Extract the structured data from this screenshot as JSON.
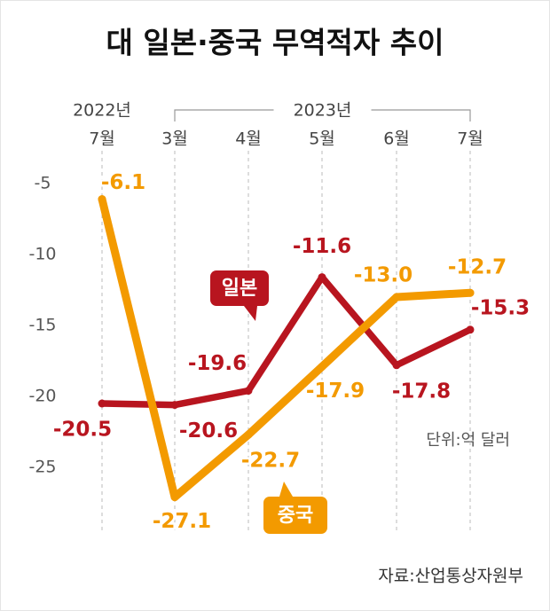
{
  "chart_data": {
    "type": "line",
    "title": "대 일본·중국 무역적자 추이",
    "years": [
      "2022년",
      "2023년"
    ],
    "categories": [
      "7월",
      "3월",
      "4월",
      "5월",
      "6월",
      "7월"
    ],
    "ylim": [
      -29.5,
      -2.5
    ],
    "yticks": [
      -5,
      -10,
      -15,
      -20,
      -25
    ],
    "series": [
      {
        "name": "일본",
        "color": "#b8151f",
        "values": [
          -20.5,
          -20.6,
          -19.6,
          -11.6,
          -17.8,
          -15.3
        ]
      },
      {
        "name": "중국",
        "color": "#f39a00",
        "values": [
          -6.1,
          -27.1,
          -22.7,
          -17.9,
          -13.0,
          -12.7
        ],
        "value_labels": [
          "-6.1",
          "-27.1",
          "-22.7",
          "-17.9",
          "-13.0",
          "-12.7"
        ]
      }
    ],
    "unit_note": "단위:억 달러",
    "source": "자료:산업통상자원부"
  }
}
